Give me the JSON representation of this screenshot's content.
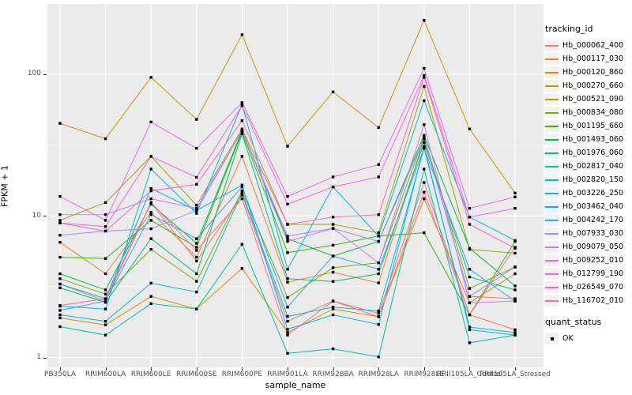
{
  "figure": {
    "y_axis": {
      "label": "FPKM + 1",
      "ticks": [
        {
          "label": "100",
          "value": 100
        },
        {
          "label": "10",
          "value": 10
        },
        {
          "label": "1",
          "value": 1
        }
      ]
    },
    "x_axis": {
      "label": "sample_name"
    },
    "colors": {
      "panel_bg": "#EBEBEB",
      "grid": "#FFFFFF",
      "tick_text": "#4D4D4D",
      "legend_key_bg": "#F2F2F2",
      "point": "#000000"
    }
  },
  "chart_data": {
    "type": "line",
    "title": "",
    "xlabel": "sample_name",
    "ylabel": "FPKM + 1",
    "y_scale": "log10",
    "ylim": [
      1,
      300
    ],
    "y_major_breaks": [
      1,
      10,
      100
    ],
    "y_minor_breaks": [
      3.1623,
      31.623
    ],
    "grid": true,
    "legend_position": "right",
    "legend_title": "tracking_id",
    "point_shape": "filled-square",
    "point_color": "#000000",
    "categories": [
      "PB350LA",
      "RRIM600LA",
      "RRIM600LE",
      "RRIM600SE",
      "RRIM600PE",
      "RRIM901LA",
      "RRIM928BA",
      "RRIM928LA",
      "RRIM928LE",
      "RRII105LA_Control",
      "RRII105LA_Stressed"
    ],
    "series": [
      {
        "name": "Hb_000062_400",
        "color": "#F8766D",
        "values": [
          3.3,
          2.5,
          12.4,
          4.8,
          14,
          1.8,
          2.5,
          2.05,
          17.2,
          2.0,
          1.57
        ]
      },
      {
        "name": "Hb_000117_030",
        "color": "#EA8331",
        "values": [
          6.5,
          3.9,
          10.6,
          5.1,
          26.3,
          3.4,
          4.0,
          3.36,
          35,
          2.7,
          2.6
        ]
      },
      {
        "name": "Hb_000120_860",
        "color": "#D89000",
        "values": [
          1.9,
          1.7,
          2.7,
          2.2,
          4.25,
          1.5,
          2.2,
          1.94,
          13.2,
          2.43,
          3.9
        ]
      },
      {
        "name": "Hb_000270_660",
        "color": "#C09B00",
        "values": [
          45,
          35,
          95,
          48,
          190,
          31,
          75,
          42,
          240,
          41,
          14.5
        ]
      },
      {
        "name": "Hb_000521_090",
        "color": "#A3A500",
        "values": [
          9.3,
          12.4,
          26.3,
          11.9,
          41,
          8.7,
          8.7,
          7.6,
          82,
          5.8,
          5.45
        ]
      },
      {
        "name": "Hb_000834_080",
        "color": "#7CAE00",
        "values": [
          3.6,
          2.8,
          5.8,
          3.45,
          15,
          2.65,
          4.3,
          4.66,
          36,
          3.07,
          4.35
        ]
      },
      {
        "name": "Hb_001195_660",
        "color": "#39B600",
        "values": [
          5.1,
          5.0,
          9.3,
          6.0,
          39,
          5.5,
          6.2,
          7.2,
          7.6,
          2.0,
          6.6
        ]
      },
      {
        "name": "Hb_001493_060",
        "color": "#00BB4E",
        "values": [
          3.9,
          3.0,
          12.1,
          6.4,
          40,
          6.9,
          5.2,
          6.6,
          37,
          5.9,
          3.2
        ]
      },
      {
        "name": "Hb_001976_060",
        "color": "#00BF7D",
        "values": [
          3.1,
          2.45,
          6.9,
          3.9,
          38,
          3.6,
          3.44,
          3.9,
          33,
          3.7,
          3.0
        ]
      },
      {
        "name": "Hb_002817_040",
        "color": "#00C1A3",
        "values": [
          1.65,
          1.44,
          2.4,
          2.2,
          6.3,
          1.07,
          1.15,
          1.01,
          21.4,
          1.27,
          1.44
        ]
      },
      {
        "name": "Hb_002820_150",
        "color": "#00BFC4",
        "values": [
          2.0,
          1.8,
          3.35,
          2.9,
          14.5,
          1.95,
          2.27,
          2.13,
          30,
          1.64,
          1.5
        ]
      },
      {
        "name": "Hb_003226_250",
        "color": "#00BAE0",
        "values": [
          2.3,
          2.2,
          21.4,
          10.4,
          61,
          4.2,
          16,
          7.2,
          65,
          9.8,
          6.7
        ]
      },
      {
        "name": "Hb_003462_040",
        "color": "#00B0F6",
        "values": [
          3.3,
          2.6,
          15.6,
          10.9,
          16.5,
          1.58,
          2.0,
          1.71,
          31,
          1.57,
          1.44
        ]
      },
      {
        "name": "Hb_004242_170",
        "color": "#35A2FF",
        "values": [
          2.15,
          2.5,
          10.2,
          6.9,
          16,
          2.27,
          5.2,
          4.2,
          30,
          4.2,
          2.5
        ]
      },
      {
        "name": "Hb_007933_030",
        "color": "#9590FF",
        "values": [
          7.3,
          7.8,
          8.1,
          10.9,
          40,
          7.2,
          8.15,
          6.6,
          35,
          2.7,
          4.35
        ]
      },
      {
        "name": "Hb_009079_050",
        "color": "#C77CFF",
        "values": [
          10.2,
          10.2,
          13.2,
          11.3,
          40,
          6.6,
          8.15,
          4.66,
          44,
          2.43,
          2.5
        ]
      },
      {
        "name": "Hb_009252_010",
        "color": "#E76BF3",
        "values": [
          13.7,
          9.3,
          46,
          30,
          63,
          13.7,
          18.8,
          23,
          110,
          11.3,
          13.6
        ]
      },
      {
        "name": "Hb_012799_190",
        "color": "#FA62DB",
        "values": [
          8.9,
          8.4,
          26.3,
          18.7,
          60,
          12.1,
          16.0,
          18.8,
          98,
          9.8,
          11.3
        ]
      },
      {
        "name": "Hb_026549_070",
        "color": "#FF62BC",
        "values": [
          8.9,
          7.8,
          15.0,
          16.7,
          47,
          8.7,
          9.8,
          10.2,
          95,
          8.7,
          5.9
        ]
      },
      {
        "name": "Hb_116702_010",
        "color": "#FF6A98",
        "values": [
          2.33,
          2.6,
          12.4,
          5.7,
          13.2,
          1.44,
          2.5,
          1.94,
          14.7,
          2.0,
          6.0
        ]
      }
    ],
    "quant_status": {
      "title": "quant_status",
      "items": [
        {
          "label": "OK"
        }
      ]
    }
  }
}
